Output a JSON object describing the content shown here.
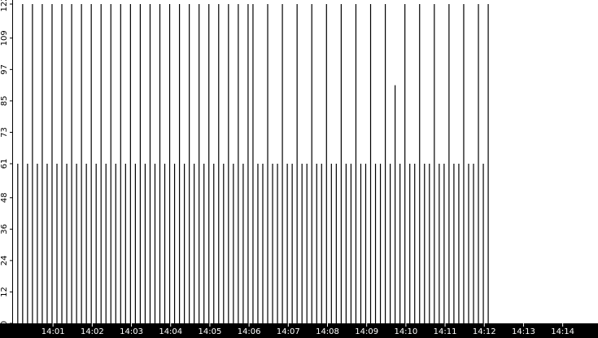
{
  "chart_data": {
    "type": "stem",
    "color": "#000000",
    "x": [
      840.1,
      840.225,
      840.35,
      840.475,
      840.6,
      840.725,
      840.85,
      840.975,
      841.1,
      841.225,
      841.35,
      841.475,
      841.6,
      841.725,
      841.85,
      841.975,
      842.1,
      842.225,
      842.35,
      842.475,
      842.6,
      842.725,
      842.85,
      842.975,
      843.1,
      843.225,
      843.35,
      843.475,
      843.6,
      843.725,
      843.85,
      843.975,
      844.1,
      844.225,
      844.35,
      844.475,
      844.6,
      844.725,
      844.85,
      844.975,
      845.1,
      845.225,
      845.35,
      845.475,
      845.6,
      845.725,
      845.85,
      845.975,
      846.1,
      846.225,
      846.35,
      846.475,
      846.6,
      846.725,
      846.85,
      846.975,
      847.1,
      847.225,
      847.35,
      847.475,
      847.6,
      847.725,
      847.85,
      847.975,
      848.1,
      848.225,
      848.35,
      848.475,
      848.6,
      848.725,
      848.85,
      848.975,
      849.1,
      849.225,
      849.35,
      849.475,
      849.6,
      849.725,
      849.85,
      849.975,
      850.1,
      850.225,
      850.35,
      850.475,
      850.6,
      850.725,
      850.85,
      850.975,
      851.1,
      851.225,
      851.35,
      851.475,
      851.6,
      851.725,
      851.85,
      851.975,
      852.1
    ],
    "values": [
      61,
      122,
      61,
      122,
      61,
      122,
      61,
      122,
      61,
      122,
      61,
      122,
      61,
      122,
      61,
      122,
      61,
      122,
      61,
      122,
      61,
      122,
      61,
      122,
      61,
      122,
      61,
      122,
      61,
      122,
      61,
      122,
      61,
      122,
      61,
      122,
      61,
      122,
      61,
      122,
      61,
      122,
      61,
      122,
      61,
      122,
      61,
      122,
      122,
      61,
      61,
      122,
      61,
      61,
      122,
      61,
      61,
      122,
      61,
      61,
      122,
      61,
      61,
      122,
      61,
      61,
      122,
      61,
      61,
      122,
      61,
      61,
      122,
      61,
      61,
      122,
      61,
      91,
      61,
      122,
      61,
      61,
      122,
      61,
      61,
      122,
      61,
      61,
      122,
      61,
      61,
      122,
      61,
      61,
      122,
      61,
      122
    ],
    "xlim": [
      840,
      854.9
    ],
    "ylim": [
      0,
      122
    ],
    "yticks": [
      0,
      12,
      24,
      36,
      48,
      61,
      73,
      85,
      97,
      109,
      122
    ],
    "xticks": [
      {
        "value": 841,
        "label": "14:01"
      },
      {
        "value": 842,
        "label": "14:02"
      },
      {
        "value": 843,
        "label": "14:03"
      },
      {
        "value": 844,
        "label": "14:04"
      },
      {
        "value": 845,
        "label": "14:05"
      },
      {
        "value": 846,
        "label": "14:06"
      },
      {
        "value": 847,
        "label": "14:07"
      },
      {
        "value": 848,
        "label": "14:08"
      },
      {
        "value": 849,
        "label": "14:09"
      },
      {
        "value": 850,
        "label": "14:10"
      },
      {
        "value": 851,
        "label": "14:11"
      },
      {
        "value": 852,
        "label": "14:12"
      },
      {
        "value": 853,
        "label": "14:13"
      },
      {
        "value": 854,
        "label": "14:14"
      }
    ]
  }
}
